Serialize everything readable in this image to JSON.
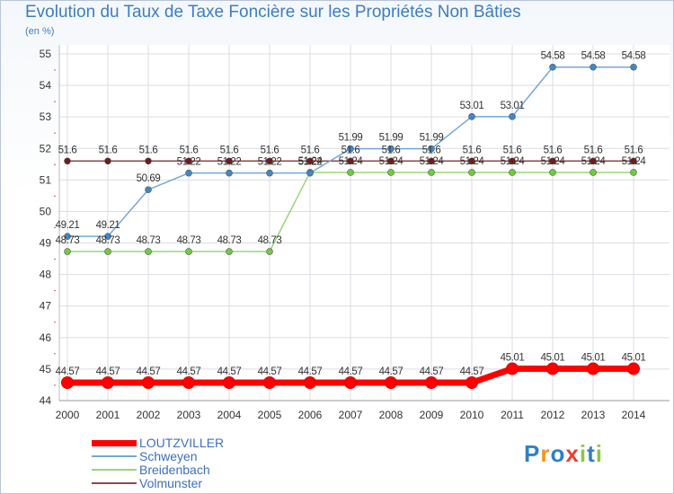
{
  "header": {
    "title": "Evolution du Taux de Taxe Foncière sur les Propriétés Non Bâties",
    "unit": "(en %)"
  },
  "logo": {
    "text": "Proxiti",
    "colors": [
      "#2f7fc7",
      "#f29321",
      "#2f7fc7",
      "#e8412d",
      "#8dc63f",
      "#2f7fc7",
      "#8dc63f"
    ]
  },
  "chart_data": {
    "type": "line",
    "title": "Evolution du Taux de Taxe Foncière sur les Propriétés Non Bâties",
    "ylabel": "(en %)",
    "xlabel": "",
    "ylim": [
      44,
      55
    ],
    "yticks": [
      44,
      45,
      46,
      47,
      48,
      49,
      50,
      51,
      52,
      53,
      54,
      55
    ],
    "grid": true,
    "legend_position": "bottom-left",
    "x": [
      "2000",
      "2001",
      "2002",
      "2003",
      "2004",
      "2005",
      "2006",
      "2007",
      "2008",
      "2009",
      "2010",
      "2011",
      "2012",
      "2013",
      "2014"
    ],
    "series": [
      {
        "name": "LOUTZVILLER",
        "color": "#ff0000",
        "marker": "#ff0000",
        "bold": true,
        "values": [
          44.57,
          44.57,
          44.57,
          44.57,
          44.57,
          44.57,
          44.57,
          44.57,
          44.57,
          44.57,
          44.57,
          45.01,
          45.01,
          45.01,
          45.01
        ],
        "labels": [
          "44.57",
          "44.57",
          "44.57",
          "44.57",
          "44.57",
          "44.57",
          "44.57",
          "44.57",
          "44.57",
          "44.57",
          "44.57",
          "45.01",
          "45.01",
          "45.01",
          "45.01"
        ]
      },
      {
        "name": "Schweyen",
        "color": "#77a7d6",
        "marker": "#3f88c8",
        "bold": false,
        "values": [
          49.21,
          49.21,
          50.69,
          51.22,
          51.22,
          51.22,
          51.22,
          51.99,
          51.99,
          51.99,
          53.01,
          53.01,
          54.58,
          54.58,
          54.58
        ],
        "labels": [
          "49.21",
          "49.21",
          "50.69",
          "51.22",
          "51.22",
          "51.22",
          "51.22",
          "51.99",
          "51.99",
          "51.99",
          "53.01",
          "53.01",
          "54.58",
          "54.58",
          "54.58"
        ]
      },
      {
        "name": "Breidenbach",
        "color": "#9ad57a",
        "marker": "#6fcc3f",
        "bold": false,
        "values": [
          48.73,
          48.73,
          48.73,
          48.73,
          48.73,
          48.73,
          51.24,
          51.24,
          51.24,
          51.24,
          51.24,
          51.24,
          51.24,
          51.24,
          51.24
        ],
        "labels": [
          "48.73",
          "48.73",
          "48.73",
          "48.73",
          "48.73",
          "48.73",
          "51.24",
          "51.24",
          "51.24",
          "51.24",
          "51.24",
          "51.24",
          "51.24",
          "51.24",
          "51.24"
        ]
      },
      {
        "name": "Volmunster",
        "color": "#8a4a4a",
        "marker": "#6e1c1c",
        "bold": false,
        "values": [
          51.6,
          51.6,
          51.6,
          51.6,
          51.6,
          51.6,
          51.6,
          51.6,
          51.6,
          51.6,
          51.6,
          51.6,
          51.6,
          51.6,
          51.6
        ],
        "labels": [
          "51.6",
          "51.6",
          "51.6",
          "51.6",
          "51.6",
          "51.6",
          "51.6",
          "51.6",
          "51.6",
          "51.6",
          "51.6",
          "51.6",
          "51.6",
          "51.6",
          "51.6"
        ]
      }
    ]
  }
}
